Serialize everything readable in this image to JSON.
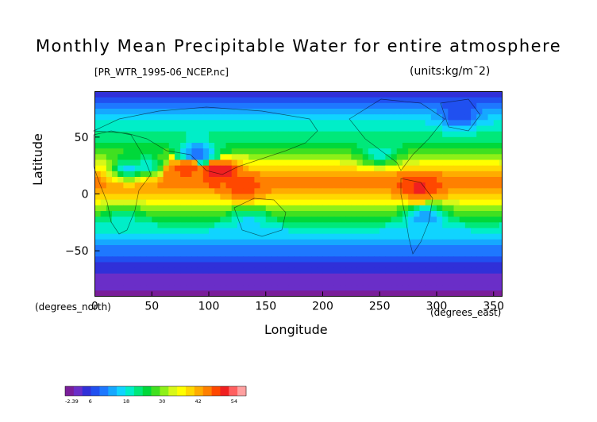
{
  "header": {
    "title": "Monthly Mean Precipitable Water for entire atmosphere",
    "file": "[PR_WTR_1995-06_NCEP.nc]",
    "units": "(units:kg/m¯2)"
  },
  "chart_data": {
    "type": "heatmap",
    "title": "Monthly Mean Precipitable Water for entire atmosphere",
    "xlabel": "Longitude",
    "ylabel": "Latitude",
    "x_unit": "(degrees_east)",
    "y_unit": "(degrees_north)",
    "xlim": [
      0,
      357.5
    ],
    "ylim": [
      -90,
      90
    ],
    "x_ticks": [
      0,
      50,
      100,
      150,
      200,
      250,
      300,
      350
    ],
    "y_ticks": [
      -50,
      0,
      50
    ],
    "colorbar": {
      "min": -2.39,
      "max": 58,
      "tick_labels": [
        "-2.39",
        "6",
        "18",
        "30",
        "42",
        "54"
      ],
      "colors": [
        "#7a1e9a",
        "#6a2ec8",
        "#3030d8",
        "#2050f0",
        "#1e78ff",
        "#16a8ff",
        "#10d4ff",
        "#00eec8",
        "#00e87a",
        "#00d83a",
        "#40e020",
        "#8ef018",
        "#d8f818",
        "#ffff00",
        "#ffd800",
        "#ffac00",
        "#ff8000",
        "#ff4800",
        "#f02020",
        "#ff6060",
        "#ffa0a0"
      ]
    },
    "zonal_profile": [
      {
        "lat": 90,
        "value": 4
      },
      {
        "lat": 80,
        "value": 9
      },
      {
        "lat": 70,
        "value": 15
      },
      {
        "lat": 60,
        "value": 19
      },
      {
        "lat": 50,
        "value": 22
      },
      {
        "lat": 40,
        "value": 26
      },
      {
        "lat": 30,
        "value": 33
      },
      {
        "lat": 20,
        "value": 42
      },
      {
        "lat": 10,
        "value": 46
      },
      {
        "lat": 0,
        "value": 42
      },
      {
        "lat": -10,
        "value": 33
      },
      {
        "lat": -20,
        "value": 26
      },
      {
        "lat": -30,
        "value": 19
      },
      {
        "lat": -40,
        "value": 14
      },
      {
        "lat": -50,
        "value": 10
      },
      {
        "lat": -60,
        "value": 7
      },
      {
        "lat": -70,
        "value": 3
      },
      {
        "lat": -80,
        "value": 1
      },
      {
        "lat": -90,
        "value": 0
      }
    ],
    "features": [
      {
        "lon": 110,
        "lat": 20,
        "value": 52
      },
      {
        "lon": 80,
        "lat": 22,
        "value": 48
      },
      {
        "lon": 285,
        "lat": 5,
        "value": 50
      },
      {
        "lon": 130,
        "lat": 5,
        "value": 48
      },
      {
        "lon": 30,
        "lat": 22,
        "value": 16
      },
      {
        "lon": 45,
        "lat": 25,
        "value": 18
      },
      {
        "lon": 135,
        "lat": -25,
        "value": 16
      },
      {
        "lon": 290,
        "lat": -20,
        "value": 12
      },
      {
        "lon": 90,
        "lat": 35,
        "value": 8
      },
      {
        "lon": 25,
        "lat": -25,
        "value": 18
      },
      {
        "lon": 250,
        "lat": 35,
        "value": 18
      },
      {
        "lon": 320,
        "lat": 70,
        "value": 6
      }
    ]
  }
}
